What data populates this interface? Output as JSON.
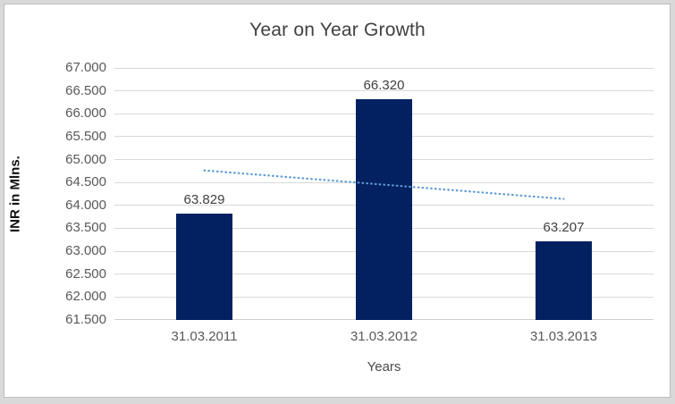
{
  "frame": {
    "outer_bg": "#d9d9d9",
    "border_color": "#bdbdbd",
    "chart_bg": "#ffffff"
  },
  "chart_data": {
    "type": "bar",
    "title": "Year on Year Growth",
    "xlabel": "Years",
    "ylabel": "INR in Mlns.",
    "categories": [
      "31.03.2011",
      "31.03.2012",
      "31.03.2013"
    ],
    "values": [
      63.829,
      66.32,
      63.207
    ],
    "data_labels": [
      "63.829",
      "66.320",
      "63.207"
    ],
    "ylim": [
      61.5,
      67.0
    ],
    "ytick_step": 0.5,
    "ytick_labels": [
      "61.500",
      "62.000",
      "62.500",
      "63.000",
      "63.500",
      "64.000",
      "64.500",
      "65.000",
      "65.500",
      "66.000",
      "66.500",
      "67.000"
    ],
    "grid": true,
    "legend": "none",
    "bar_color": "#032160",
    "gridline_color": "#d9d9d9",
    "title_color": "#404040",
    "tick_color": "#595959",
    "data_label_color": "#404040",
    "trendline": {
      "type": "linear",
      "style": "dotted",
      "color": "#5b9bd5",
      "y_start": 64.763,
      "y_end": 64.141
    }
  }
}
